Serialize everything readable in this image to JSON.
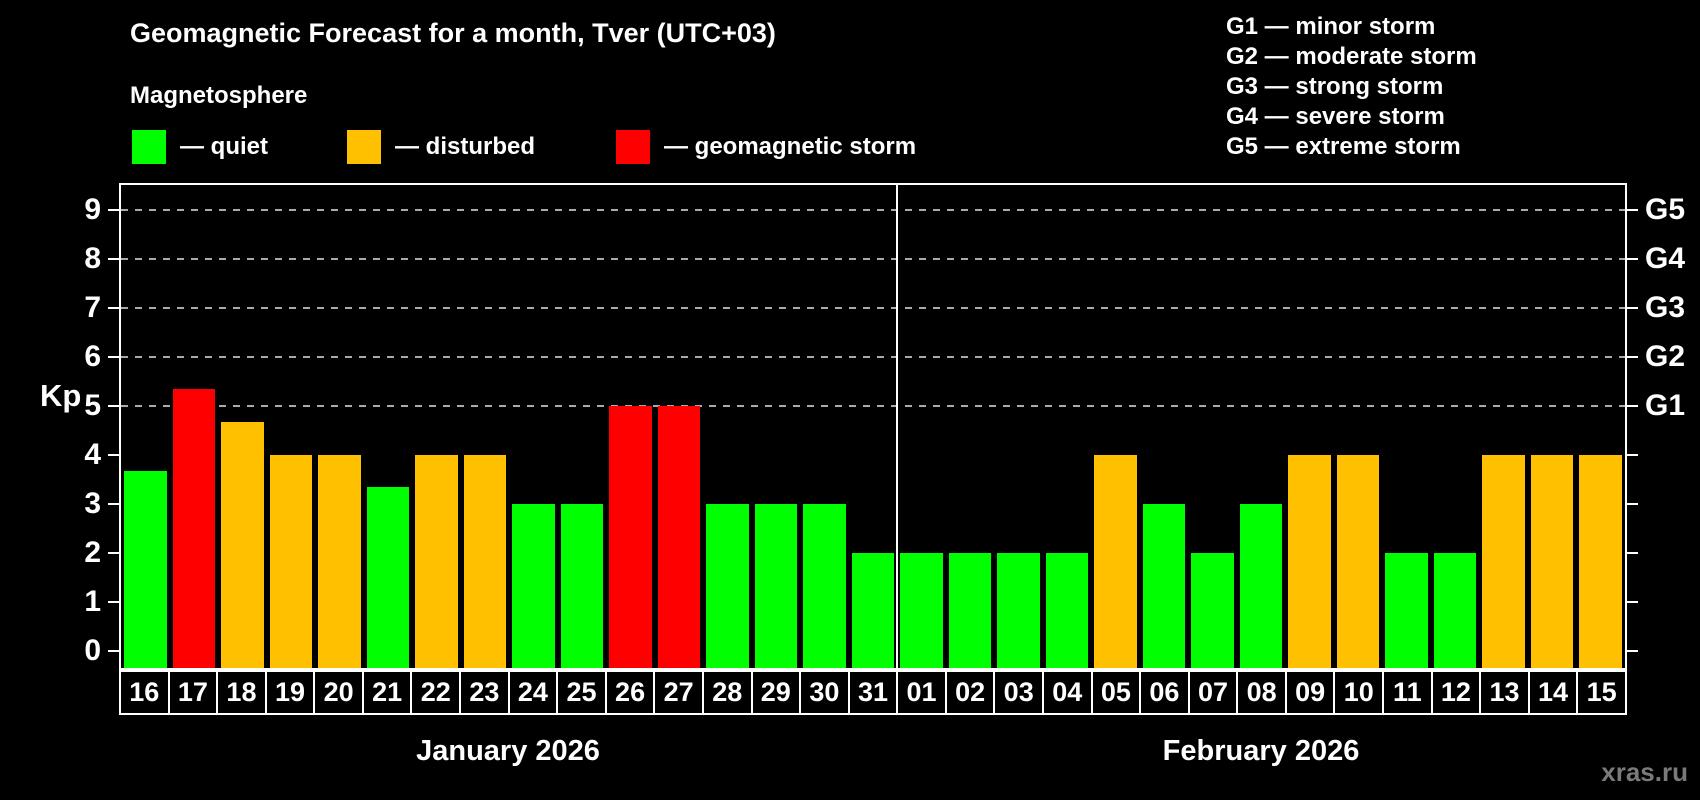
{
  "title": "Geomagnetic Forecast for a month, Tver (UTC+03)",
  "subtitle": "Magnetosphere",
  "legend": {
    "quiet": "— quiet",
    "disturbed": "— disturbed",
    "storm": "— geomagnetic storm"
  },
  "g_legend": [
    "G1 — minor storm",
    "G2 — moderate storm",
    "G3 — strong storm",
    "G4 — severe storm",
    "G5 — extreme storm"
  ],
  "watermark": "xras.ru",
  "colors": {
    "quiet": "#00ff00",
    "disturbed": "#ffc000",
    "storm": "#ff0000",
    "background": "#000000",
    "text": "#ffffff",
    "grid": "#aaaaaa",
    "frame": "#ffffff",
    "watermark": "#7a7a7a"
  },
  "chart_data": {
    "type": "bar",
    "title": "Geomagnetic Forecast for a month, Tver (UTC+03)",
    "ylabel": "Kp",
    "ylim": [
      0,
      9
    ],
    "yticks": [
      0,
      1,
      2,
      3,
      4,
      5,
      6,
      7,
      8,
      9
    ],
    "grid_levels": [
      5,
      6,
      7,
      8,
      9
    ],
    "grid_style": "dashed",
    "right_axis": [
      {
        "value": 5,
        "label": "G1"
      },
      {
        "value": 6,
        "label": "G2"
      },
      {
        "value": 7,
        "label": "G3"
      },
      {
        "value": 8,
        "label": "G4"
      },
      {
        "value": 9,
        "label": "G5"
      }
    ],
    "months": [
      {
        "label": "January 2026",
        "start_index": 0,
        "days": 16
      },
      {
        "label": "February 2026",
        "start_index": 16,
        "days": 15
      }
    ],
    "bars": [
      {
        "day": "16",
        "month": "January 2026",
        "value": 3.67,
        "state": "quiet"
      },
      {
        "day": "17",
        "month": "January 2026",
        "value": 5.33,
        "state": "storm"
      },
      {
        "day": "18",
        "month": "January 2026",
        "value": 4.67,
        "state": "disturbed"
      },
      {
        "day": "19",
        "month": "January 2026",
        "value": 4,
        "state": "disturbed"
      },
      {
        "day": "20",
        "month": "January 2026",
        "value": 4,
        "state": "disturbed"
      },
      {
        "day": "21",
        "month": "January 2026",
        "value": 3.33,
        "state": "quiet"
      },
      {
        "day": "22",
        "month": "January 2026",
        "value": 4,
        "state": "disturbed"
      },
      {
        "day": "23",
        "month": "January 2026",
        "value": 4,
        "state": "disturbed"
      },
      {
        "day": "24",
        "month": "January 2026",
        "value": 3,
        "state": "quiet"
      },
      {
        "day": "25",
        "month": "January 2026",
        "value": 3,
        "state": "quiet"
      },
      {
        "day": "26",
        "month": "January 2026",
        "value": 5,
        "state": "storm"
      },
      {
        "day": "27",
        "month": "January 2026",
        "value": 5,
        "state": "storm"
      },
      {
        "day": "28",
        "month": "January 2026",
        "value": 3,
        "state": "quiet"
      },
      {
        "day": "29",
        "month": "January 2026",
        "value": 3,
        "state": "quiet"
      },
      {
        "day": "30",
        "month": "January 2026",
        "value": 3,
        "state": "quiet"
      },
      {
        "day": "31",
        "month": "January 2026",
        "value": 2,
        "state": "quiet"
      },
      {
        "day": "01",
        "month": "February 2026",
        "value": 2,
        "state": "quiet"
      },
      {
        "day": "02",
        "month": "February 2026",
        "value": 2,
        "state": "quiet"
      },
      {
        "day": "03",
        "month": "February 2026",
        "value": 2,
        "state": "quiet"
      },
      {
        "day": "04",
        "month": "February 2026",
        "value": 2,
        "state": "quiet"
      },
      {
        "day": "05",
        "month": "February 2026",
        "value": 4,
        "state": "disturbed"
      },
      {
        "day": "06",
        "month": "February 2026",
        "value": 3,
        "state": "quiet"
      },
      {
        "day": "07",
        "month": "February 2026",
        "value": 2,
        "state": "quiet"
      },
      {
        "day": "08",
        "month": "February 2026",
        "value": 3,
        "state": "quiet"
      },
      {
        "day": "09",
        "month": "February 2026",
        "value": 4,
        "state": "disturbed"
      },
      {
        "day": "10",
        "month": "February 2026",
        "value": 4,
        "state": "disturbed"
      },
      {
        "day": "11",
        "month": "February 2026",
        "value": 2,
        "state": "quiet"
      },
      {
        "day": "12",
        "month": "February 2026",
        "value": 2,
        "state": "quiet"
      },
      {
        "day": "13",
        "month": "February 2026",
        "value": 4,
        "state": "disturbed"
      },
      {
        "day": "14",
        "month": "February 2026",
        "value": 4,
        "state": "disturbed"
      },
      {
        "day": "15",
        "month": "February 2026",
        "value": 4,
        "state": "disturbed"
      }
    ]
  }
}
